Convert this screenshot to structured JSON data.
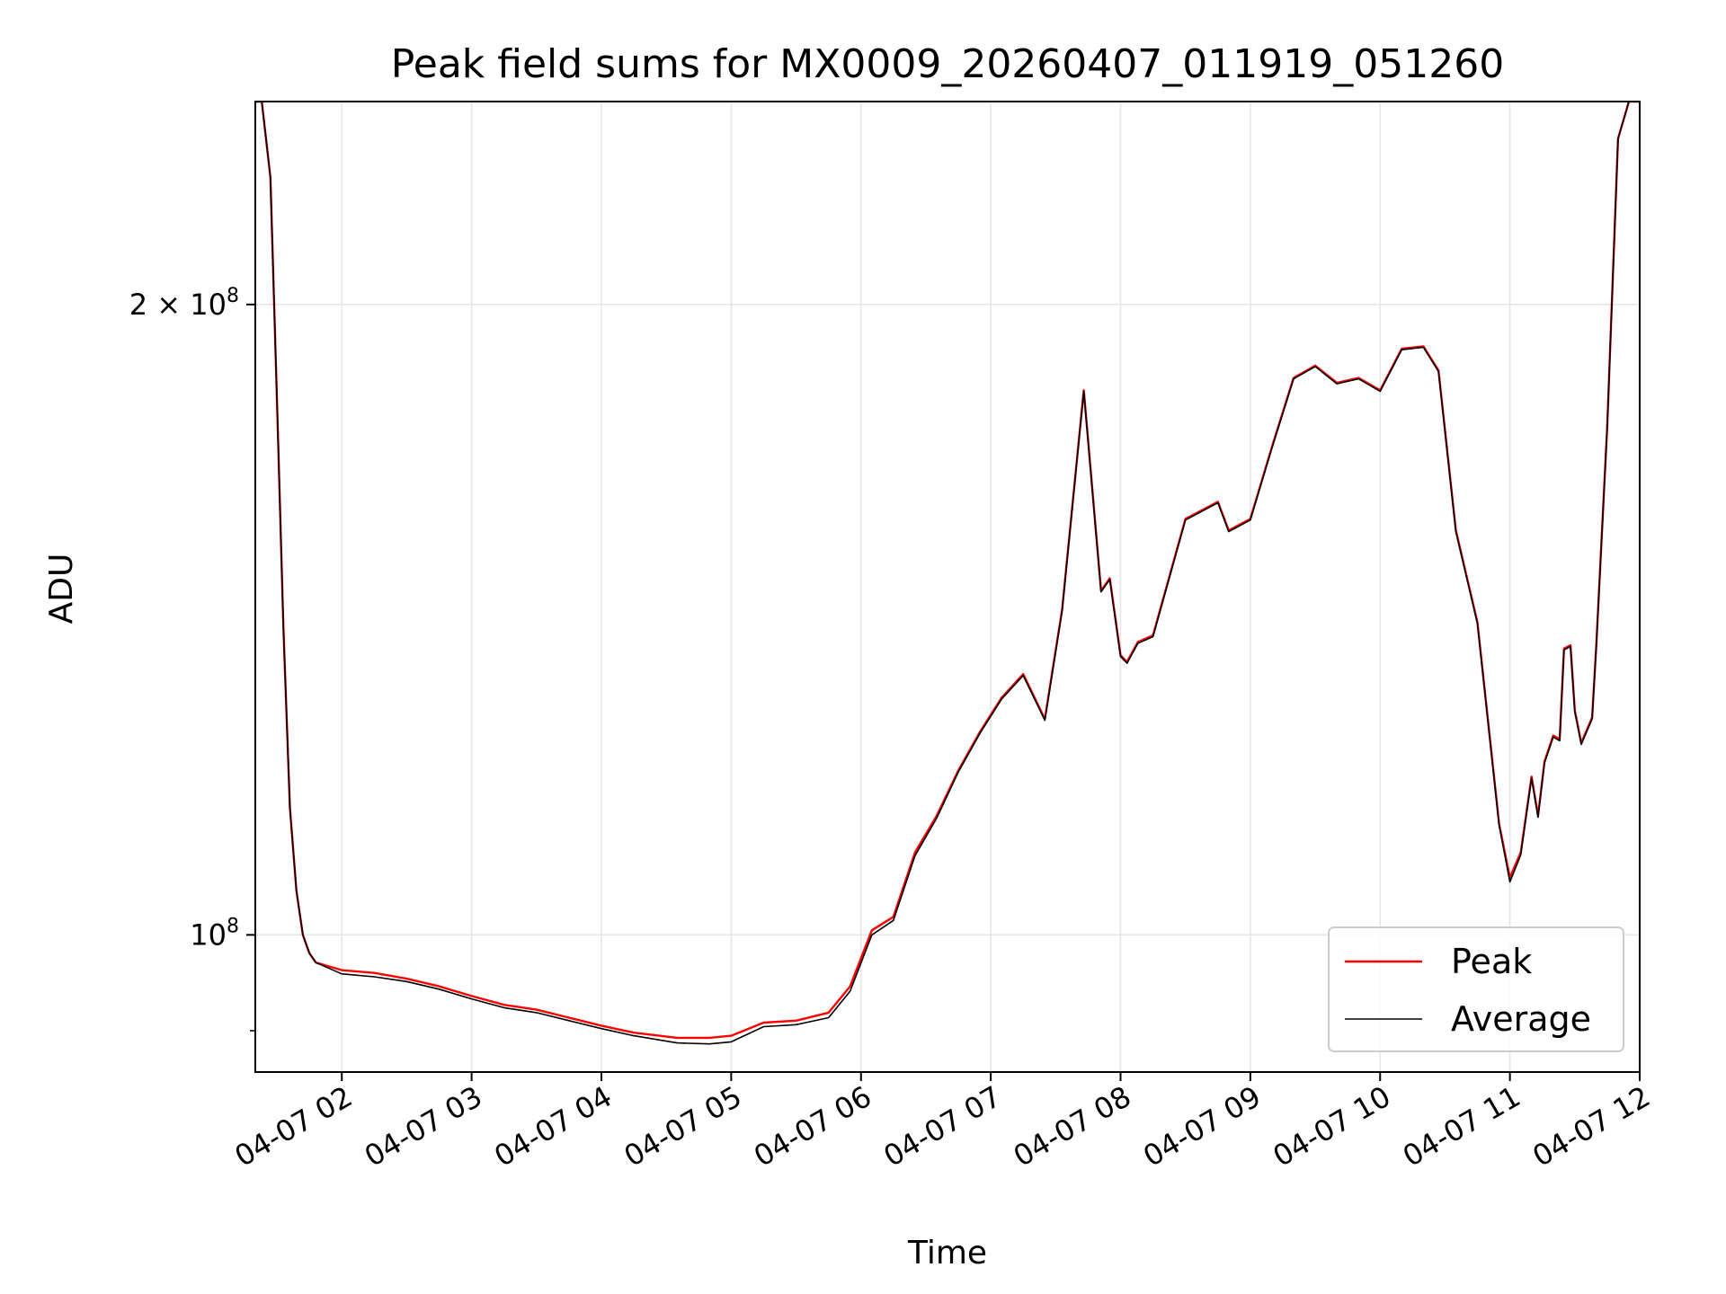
{
  "chart_data": {
    "type": "line",
    "title": "Peak field sums for MX0009_20260407_011919_051260",
    "xlabel": "Time",
    "ylabel": "ADU",
    "y_scale": "log",
    "ylim": [
      86000000,
      250000000
    ],
    "xlim": [
      "2026-04-07 01:20",
      "2026-04-07 12:00"
    ],
    "grid": true,
    "legend_position": "lower-right",
    "x_ticks": [
      "04-07 02",
      "04-07 03",
      "04-07 04",
      "04-07 05",
      "04-07 06",
      "04-07 07",
      "04-07 08",
      "04-07 09",
      "04-07 10",
      "04-07 11",
      "04-07 12"
    ],
    "y_ticks": [
      {
        "value": 200000000,
        "base": "2 × 10",
        "exp": "8"
      },
      {
        "value": 100000000,
        "base": "10",
        "exp": "8"
      }
    ],
    "x": [
      "2026-04-07 01:20",
      "2026-04-07 01:23",
      "2026-04-07 01:27",
      "2026-04-07 01:30",
      "2026-04-07 01:33",
      "2026-04-07 01:36",
      "2026-04-07 01:39",
      "2026-04-07 01:42",
      "2026-04-07 01:45",
      "2026-04-07 01:48",
      "2026-04-07 02:00",
      "2026-04-07 02:15",
      "2026-04-07 02:30",
      "2026-04-07 02:45",
      "2026-04-07 03:00",
      "2026-04-07 03:15",
      "2026-04-07 03:30",
      "2026-04-07 03:45",
      "2026-04-07 04:00",
      "2026-04-07 04:15",
      "2026-04-07 04:35",
      "2026-04-07 04:50",
      "2026-04-07 05:00",
      "2026-04-07 05:15",
      "2026-04-07 05:30",
      "2026-04-07 05:45",
      "2026-04-07 05:55",
      "2026-04-07 06:05",
      "2026-04-07 06:15",
      "2026-04-07 06:25",
      "2026-04-07 06:35",
      "2026-04-07 06:45",
      "2026-04-07 06:55",
      "2026-04-07 07:05",
      "2026-04-07 07:15",
      "2026-04-07 07:25",
      "2026-04-07 07:33",
      "2026-04-07 07:43",
      "2026-04-07 07:51",
      "2026-04-07 07:55",
      "2026-04-07 08:00",
      "2026-04-07 08:03",
      "2026-04-07 08:08",
      "2026-04-07 08:15",
      "2026-04-07 08:30",
      "2026-04-07 08:45",
      "2026-04-07 08:50",
      "2026-04-07 09:00",
      "2026-04-07 09:10",
      "2026-04-07 09:20",
      "2026-04-07 09:30",
      "2026-04-07 09:40",
      "2026-04-07 09:50",
      "2026-04-07 10:00",
      "2026-04-07 10:10",
      "2026-04-07 10:20",
      "2026-04-07 10:27",
      "2026-04-07 10:35",
      "2026-04-07 10:45",
      "2026-04-07 10:55",
      "2026-04-07 11:00",
      "2026-04-07 11:05",
      "2026-04-07 11:10",
      "2026-04-07 11:13",
      "2026-04-07 11:16",
      "2026-04-07 11:20",
      "2026-04-07 11:23",
      "2026-04-07 11:25",
      "2026-04-07 11:28",
      "2026-04-07 11:30",
      "2026-04-07 11:33",
      "2026-04-07 11:38",
      "2026-04-07 11:40",
      "2026-04-07 11:45",
      "2026-04-07 11:50",
      "2026-04-07 11:55",
      "2026-04-07 12:00"
    ],
    "series": [
      {
        "name": "Peak",
        "color": "#ff0000",
        "values": [
          250000000,
          250000000,
          230000000,
          180000000,
          140000000,
          115000000,
          105000000,
          100000000,
          98000000,
          97000000,
          96200000,
          95900000,
          95300000,
          94500000,
          93500000,
          92600000,
          92100000,
          91300000,
          90500000,
          89800000,
          89300000,
          89300000,
          89500000,
          90800000,
          91000000,
          91800000,
          94500000,
          100500000,
          102000000,
          109500000,
          114000000,
          119800000,
          125000000,
          129800000,
          133200000,
          126800000,
          143000000,
          182000000,
          146000000,
          148000000,
          136000000,
          135000000,
          138000000,
          139000000,
          158000000,
          161000000,
          156000000,
          158000000,
          171000000,
          184500000,
          187000000,
          183500000,
          184500000,
          182000000,
          190500000,
          191000000,
          186000000,
          156000000,
          141000000,
          113000000,
          106500000,
          109500000,
          119000000,
          114000000,
          121000000,
          124500000,
          124000000,
          137000000,
          137500000,
          128000000,
          123500000,
          127000000,
          138000000,
          175000000,
          240000000,
          250000000,
          250000000
        ]
      },
      {
        "name": "Average",
        "color": "#000000",
        "values": [
          250000000,
          250000000,
          230000000,
          180000000,
          140000000,
          115000000,
          105000000,
          100000000,
          98000000,
          97000000,
          95800000,
          95500000,
          95000000,
          94200000,
          93200000,
          92300000,
          91800000,
          91000000,
          90200000,
          89500000,
          88800000,
          88700000,
          88900000,
          90400000,
          90600000,
          91300000,
          94000000,
          100000000,
          101600000,
          109100000,
          113700000,
          119600000,
          124800000,
          129600000,
          133000000,
          126600000,
          142800000,
          181800000,
          145800000,
          147800000,
          135800000,
          134800000,
          137800000,
          138800000,
          157800000,
          160800000,
          155800000,
          157800000,
          170800000,
          184300000,
          186800000,
          183300000,
          184300000,
          181800000,
          190300000,
          190800000,
          185800000,
          155800000,
          140800000,
          112800000,
          106000000,
          109200000,
          118800000,
          113800000,
          120800000,
          124300000,
          123800000,
          136800000,
          137300000,
          127800000,
          123300000,
          126800000,
          137800000,
          174800000,
          240000000,
          250000000,
          250000000
        ]
      }
    ]
  }
}
